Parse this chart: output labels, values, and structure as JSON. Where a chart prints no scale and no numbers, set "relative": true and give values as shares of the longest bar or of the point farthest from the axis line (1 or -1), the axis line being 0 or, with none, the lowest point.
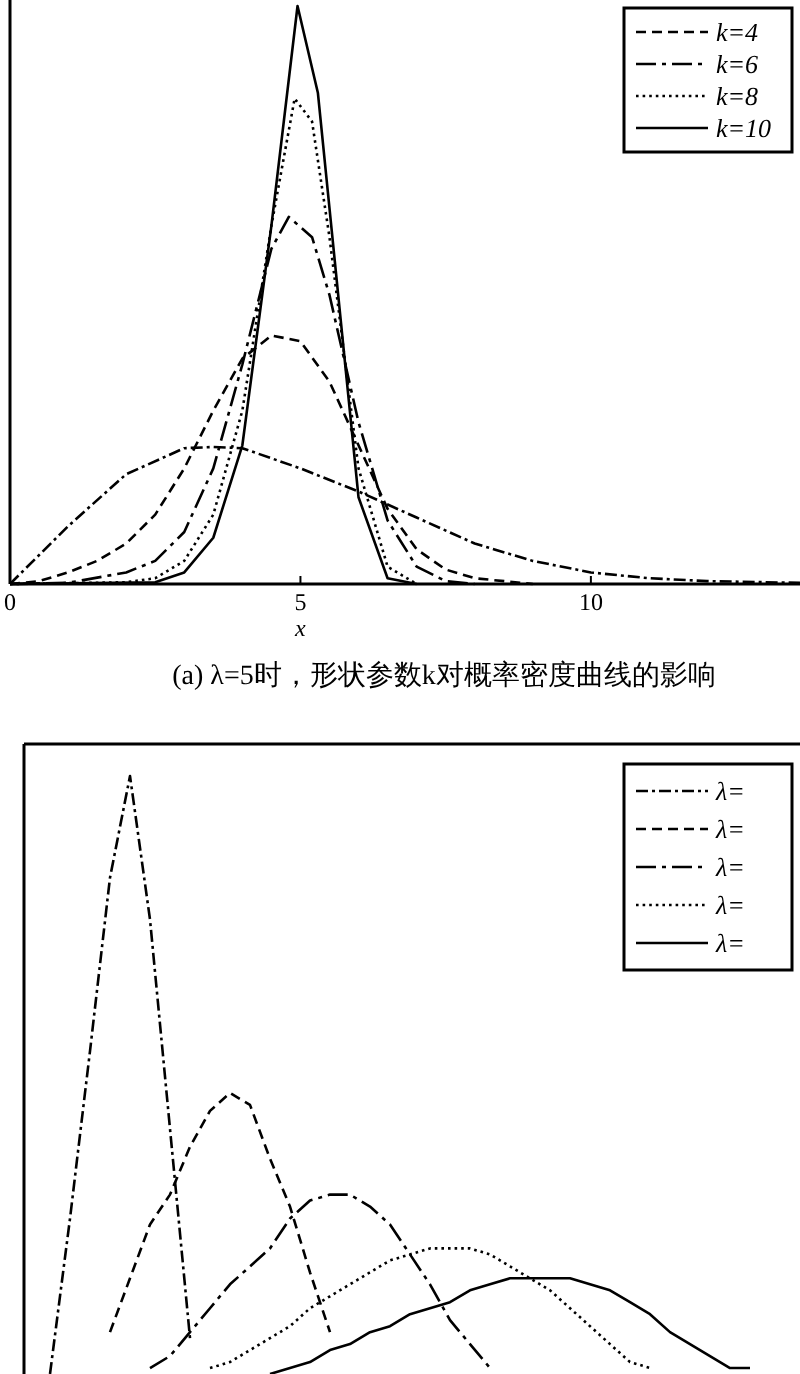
{
  "chart_data": [
    {
      "type": "line",
      "title": "(a) λ=5时，形状参数k对概率密度曲线的影响",
      "xlabel": "x",
      "xlim": [
        0,
        13.6
      ],
      "xticks": [
        0,
        5,
        10
      ],
      "relative": true,
      "legend": "top right",
      "series": [
        {
          "color": "#000000",
          "line_style": "dashdot",
          "x": [
            0,
            1,
            2,
            3,
            3.5,
            4,
            5,
            6,
            7,
            8,
            9,
            10,
            11,
            12,
            13.6
          ],
          "values": [
            0,
            0.1,
            0.19,
            0.235,
            0.237,
            0.235,
            0.2,
            0.16,
            0.115,
            0.07,
            0.04,
            0.02,
            0.01,
            0.005,
            0.002
          ]
        },
        {
          "name": "k=4",
          "color": "#000000",
          "line_style": "dashed",
          "x": [
            0,
            0.5,
            1,
            1.5,
            2,
            2.5,
            3,
            3.5,
            4,
            4.5,
            5,
            5.5,
            6,
            6.5,
            7,
            7.5,
            8,
            9
          ],
          "values": [
            0,
            0.005,
            0.02,
            0.04,
            0.07,
            0.12,
            0.2,
            0.3,
            0.39,
            0.43,
            0.42,
            0.35,
            0.24,
            0.13,
            0.06,
            0.025,
            0.01,
            0
          ]
        },
        {
          "name": "k=6",
          "color": "#000000",
          "line_style": "longdashdot",
          "x": [
            0,
            1,
            2,
            2.5,
            3,
            3.5,
            4,
            4.5,
            4.8,
            5.2,
            5.5,
            6,
            6.5,
            7,
            7.5,
            8
          ],
          "values": [
            0,
            0.002,
            0.02,
            0.04,
            0.09,
            0.2,
            0.38,
            0.58,
            0.635,
            0.6,
            0.5,
            0.28,
            0.11,
            0.03,
            0.005,
            0
          ]
        },
        {
          "name": "k=8",
          "color": "#000000",
          "line_style": "dotted",
          "x": [
            0,
            2,
            2.5,
            3,
            3.5,
            4,
            4.5,
            4.9,
            5.2,
            5.5,
            6,
            6.5,
            7
          ],
          "values": [
            0,
            0.003,
            0.01,
            0.04,
            0.12,
            0.3,
            0.62,
            0.84,
            0.8,
            0.6,
            0.2,
            0.03,
            0
          ]
        },
        {
          "name": "k=10",
          "color": "#000000",
          "line_style": "solid",
          "x": [
            0,
            2.5,
            3,
            3.5,
            4,
            4.5,
            4.95,
            5.3,
            5.6,
            6,
            6.5,
            7
          ],
          "values": [
            0,
            0.003,
            0.02,
            0.08,
            0.24,
            0.62,
            1,
            0.85,
            0.55,
            0.15,
            0.01,
            0
          ]
        }
      ]
    },
    {
      "type": "line",
      "relative": true,
      "legend": "top right",
      "categories": [
        null,
        null,
        null,
        null,
        null,
        null,
        null,
        null,
        null,
        null,
        null,
        null,
        null,
        null,
        null,
        null,
        null,
        null,
        null,
        null,
        null,
        null,
        null,
        null,
        null,
        null,
        null,
        null,
        null,
        null,
        null,
        null,
        null,
        null,
        null,
        null,
        null,
        null
      ],
      "series": [
        {
          "name": "λ=",
          "color": "#000000",
          "line_style": "dashdot",
          "values": [
            null,
            0,
            0.26,
            0.54,
            0.83,
            1,
            0.76,
            0.41,
            0.06,
            null,
            null,
            null,
            null,
            null,
            null,
            null,
            null,
            null,
            null,
            null,
            null,
            null,
            null,
            null,
            null,
            null,
            null,
            null,
            null,
            null,
            null,
            null,
            null,
            null,
            null,
            null,
            null,
            null
          ]
        },
        {
          "name": "λ=",
          "color": "#000000",
          "line_style": "dashed",
          "values": [
            null,
            null,
            null,
            null,
            0.07,
            0.16,
            0.25,
            0.3,
            0.38,
            0.44,
            0.47,
            0.45,
            0.36,
            0.28,
            0.17,
            0.07,
            null,
            null,
            null,
            null,
            null,
            null,
            null,
            null,
            null,
            null,
            null,
            null,
            null,
            null,
            null,
            null,
            null,
            null,
            null,
            null,
            null,
            null
          ]
        },
        {
          "name": "λ=",
          "color": "#000000",
          "line_style": "longdashdot",
          "values": [
            null,
            null,
            null,
            null,
            null,
            null,
            0.01,
            0.03,
            0.07,
            0.11,
            0.15,
            0.18,
            0.21,
            0.26,
            0.29,
            0.3,
            0.3,
            0.28,
            0.25,
            0.2,
            0.15,
            0.09,
            0.05,
            0.01,
            null,
            null,
            null,
            null,
            null,
            null,
            null,
            null,
            null,
            null,
            null,
            null,
            null,
            null
          ]
        },
        {
          "name": "λ=",
          "color": "#000000",
          "line_style": "dotted",
          "values": [
            null,
            null,
            null,
            null,
            null,
            null,
            null,
            null,
            null,
            0.01,
            0.02,
            0.04,
            0.06,
            0.08,
            0.11,
            0.13,
            0.15,
            0.17,
            0.19,
            0.2,
            0.21,
            0.21,
            0.21,
            0.2,
            0.18,
            0.16,
            0.14,
            0.11,
            0.08,
            0.05,
            0.02,
            0.01,
            null,
            null,
            null,
            null,
            null,
            null
          ]
        },
        {
          "name": "λ=",
          "color": "#000000",
          "line_style": "solid",
          "values": [
            null,
            null,
            null,
            null,
            null,
            null,
            null,
            null,
            null,
            null,
            null,
            null,
            0.0,
            0.01,
            0.02,
            0.04,
            0.05,
            0.07,
            0.08,
            0.1,
            0.11,
            0.12,
            0.14,
            0.15,
            0.16,
            0.16,
            0.16,
            0.16,
            0.15,
            0.14,
            0.12,
            0.1,
            0.07,
            0.05,
            0.03,
            0.01,
            0.01,
            null
          ]
        }
      ]
    }
  ]
}
